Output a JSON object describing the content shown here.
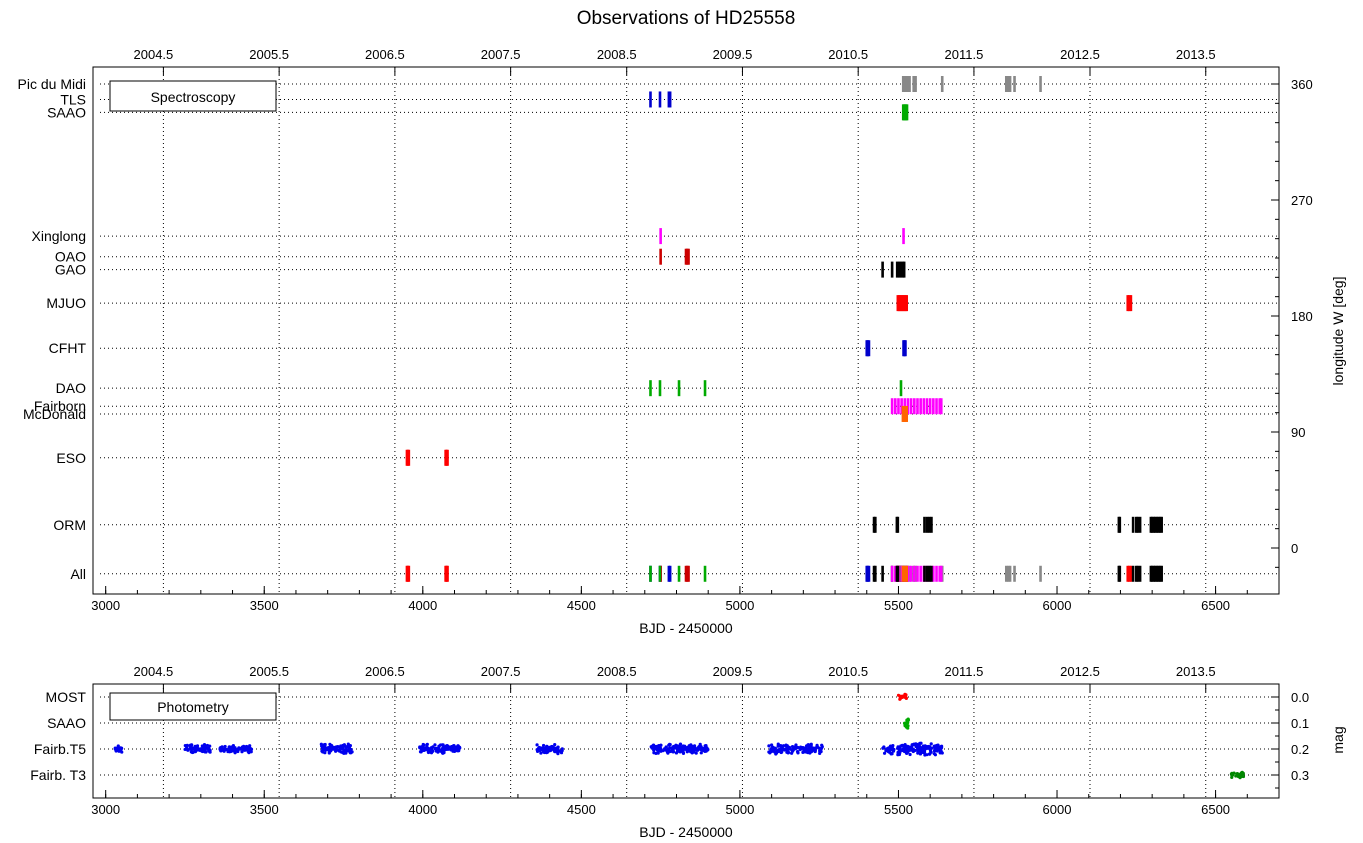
{
  "chart_data": [
    {
      "type": "scatter",
      "title": "Observations of HD25558",
      "xlabel": "BJD - 2450000",
      "ylabel_right": "longitude W [deg]",
      "legend": "Spectroscopy",
      "legend_position": "top-left",
      "xlim": [
        2960,
        6700
      ],
      "x_ticks": [
        3000,
        3500,
        4000,
        4500,
        5000,
        5500,
        6000,
        6500
      ],
      "top_axis_ticks": [
        {
          "x": 3182,
          "label": "2004.5"
        },
        {
          "x": 3547,
          "label": "2005.5"
        },
        {
          "x": 3912,
          "label": "2006.5"
        },
        {
          "x": 4277,
          "label": "2007.5"
        },
        {
          "x": 4643,
          "label": "2008.5"
        },
        {
          "x": 5008,
          "label": "2009.5"
        },
        {
          "x": 5373,
          "label": "2010.5"
        },
        {
          "x": 5738,
          "label": "2011.5"
        },
        {
          "x": 6104,
          "label": "2012.5"
        },
        {
          "x": 6469,
          "label": "2013.5"
        }
      ],
      "y_right_ticks": [
        0,
        90,
        180,
        270,
        360
      ],
      "grid": true,
      "observatories": [
        {
          "name": "Pic du Midi",
          "longitude": 360.0
        },
        {
          "name": "TLS",
          "longitude": 348.0
        },
        {
          "name": "SAAO",
          "longitude": 338.0
        },
        {
          "name": "Xinglong",
          "longitude": 242.0
        },
        {
          "name": "OAO",
          "longitude": 226.0
        },
        {
          "name": "GAO",
          "longitude": 216.0
        },
        {
          "name": "MJUO",
          "longitude": 190.0
        },
        {
          "name": "CFHT",
          "longitude": 155.0
        },
        {
          "name": "DAO",
          "longitude": 124.0
        },
        {
          "name": "Fairborn",
          "longitude": 110.0
        },
        {
          "name": "McDonald",
          "longitude": 104.0
        },
        {
          "name": "ESO",
          "longitude": 70.0
        },
        {
          "name": "ORM",
          "longitude": 18.0
        },
        {
          "name": "All",
          "longitude": -20.0
        }
      ],
      "series": [
        {
          "site": "Pic du Midi",
          "color": "#888888",
          "x": [
            5515,
            5522,
            5528,
            5535,
            5548,
            5554,
            5638,
            5840,
            5846,
            5852,
            5866,
            5948
          ]
        },
        {
          "site": "TLS",
          "color": "#0000cc",
          "x": [
            4718,
            4748,
            4776,
            4780
          ]
        },
        {
          "site": "SAAO",
          "color": "#00aa00",
          "x": [
            5515,
            5518,
            5521,
            5524,
            5527
          ]
        },
        {
          "site": "Xinglong",
          "color": "#ff00ff",
          "x": [
            4750,
            5516
          ]
        },
        {
          "site": "OAO",
          "color": "#cc0000",
          "x": [
            4750,
            4830,
            4834,
            4838
          ]
        },
        {
          "site": "GAO",
          "color": "#000000",
          "x": [
            5450,
            5480,
            5496,
            5502,
            5508,
            5514,
            5518
          ]
        },
        {
          "site": "MJUO",
          "color": "#ff0000",
          "x": [
            5498,
            5502,
            5506,
            5510,
            5514,
            5518,
            5522,
            5526,
            6223,
            6228,
            6233
          ]
        },
        {
          "site": "CFHT",
          "color": "#0000cc",
          "x": [
            5400,
            5403,
            5407,
            5516,
            5519,
            5522
          ]
        },
        {
          "site": "DAO",
          "color": "#00aa00",
          "x": [
            4718,
            4748,
            4808,
            4890,
            5508
          ]
        },
        {
          "site": "Fairborn",
          "color": "#ff00ff",
          "x": [
            5480,
            5490,
            5500,
            5510,
            5520,
            5530,
            5540,
            5550,
            5560,
            5570,
            5580,
            5590,
            5600,
            5610,
            5620,
            5630,
            5635
          ]
        },
        {
          "site": "McDonald",
          "color": "#ff6600",
          "x": [
            5514,
            5518,
            5522,
            5526
          ]
        },
        {
          "site": "ESO",
          "color": "#ff0000",
          "x": [
            3950,
            3953,
            3956,
            4072,
            4075,
            4078
          ]
        },
        {
          "site": "ORM",
          "color": "#000000",
          "x": [
            5423,
            5427,
            5495,
            5498,
            5582,
            5590,
            5597,
            5604,
            6195,
            6198,
            6240,
            6250,
            6255,
            6262,
            6296,
            6300,
            6305,
            6310,
            6315,
            6320,
            6325,
            6330
          ]
        }
      ]
    },
    {
      "type": "scatter",
      "xlabel": "BJD - 2450000",
      "ylabel_right": "mag",
      "legend": "Photometry",
      "legend_position": "top-left",
      "xlim": [
        2960,
        6700
      ],
      "x_ticks": [
        3000,
        3500,
        4000,
        4500,
        5000,
        5500,
        6000,
        6500
      ],
      "top_axis_ticks": [
        {
          "x": 3182,
          "label": "2004.5"
        },
        {
          "x": 3547,
          "label": "2005.5"
        },
        {
          "x": 3912,
          "label": "2006.5"
        },
        {
          "x": 4277,
          "label": "2007.5"
        },
        {
          "x": 4643,
          "label": "2008.5"
        },
        {
          "x": 5008,
          "label": "2009.5"
        },
        {
          "x": 5373,
          "label": "2010.5"
        },
        {
          "x": 5738,
          "label": "2011.5"
        },
        {
          "x": 6104,
          "label": "2012.5"
        },
        {
          "x": 6469,
          "label": "2013.5"
        }
      ],
      "y_right_ticks": [
        0.0,
        0.1,
        0.2,
        0.3
      ],
      "y_right_tick_labels": [
        "0.0",
        "0.1",
        "0.2",
        "0.3"
      ],
      "grid": true,
      "observatories": [
        {
          "name": "MOST",
          "mag": 0.0
        },
        {
          "name": "SAAO",
          "mag": 0.1
        },
        {
          "name": "Fairb.T5",
          "mag": 0.2
        },
        {
          "name": "Fairb. T3",
          "mag": 0.3
        }
      ],
      "seasons": [
        {
          "site": "MOST",
          "color": "#ff0000",
          "x_range": [
            5500,
            5525
          ],
          "mag_center": 0.0,
          "mag_spread": 0.015
        },
        {
          "site": "SAAO",
          "color": "#00aa00",
          "x_range": [
            5518,
            5532
          ],
          "mag_center": 0.1,
          "mag_spread": 0.04
        },
        {
          "site": "Fairb.T5",
          "color": "#0000ee",
          "x_range": [
            3030,
            3055
          ],
          "mag_center": 0.2,
          "mag_spread": 0.015
        },
        {
          "site": "Fairb.T5",
          "color": "#0000ee",
          "x_range": [
            3250,
            3330
          ],
          "mag_center": 0.2,
          "mag_spread": 0.02
        },
        {
          "site": "Fairb.T5",
          "color": "#0000ee",
          "x_range": [
            3360,
            3460
          ],
          "mag_center": 0.2,
          "mag_spread": 0.015
        },
        {
          "site": "Fairb.T5",
          "color": "#0000ee",
          "x_range": [
            3680,
            3780
          ],
          "mag_center": 0.2,
          "mag_spread": 0.02
        },
        {
          "site": "Fairb.T5",
          "color": "#0000ee",
          "x_range": [
            3990,
            4120
          ],
          "mag_center": 0.2,
          "mag_spread": 0.02
        },
        {
          "site": "Fairb.T5",
          "color": "#0000ee",
          "x_range": [
            4360,
            4440
          ],
          "mag_center": 0.2,
          "mag_spread": 0.02
        },
        {
          "site": "Fairb.T5",
          "color": "#0000ee",
          "x_range": [
            4720,
            4900
          ],
          "mag_center": 0.2,
          "mag_spread": 0.02
        },
        {
          "site": "Fairb.T5",
          "color": "#0000ee",
          "x_range": [
            5090,
            5260
          ],
          "mag_center": 0.2,
          "mag_spread": 0.02
        },
        {
          "site": "Fairb.T5",
          "color": "#0000ee",
          "x_range": [
            5450,
            5640
          ],
          "mag_center": 0.2,
          "mag_spread": 0.025
        },
        {
          "site": "Fairb. T3",
          "color": "#008800",
          "x_range": [
            6550,
            6590
          ],
          "mag_center": 0.3,
          "mag_spread": 0.012
        }
      ]
    }
  ]
}
